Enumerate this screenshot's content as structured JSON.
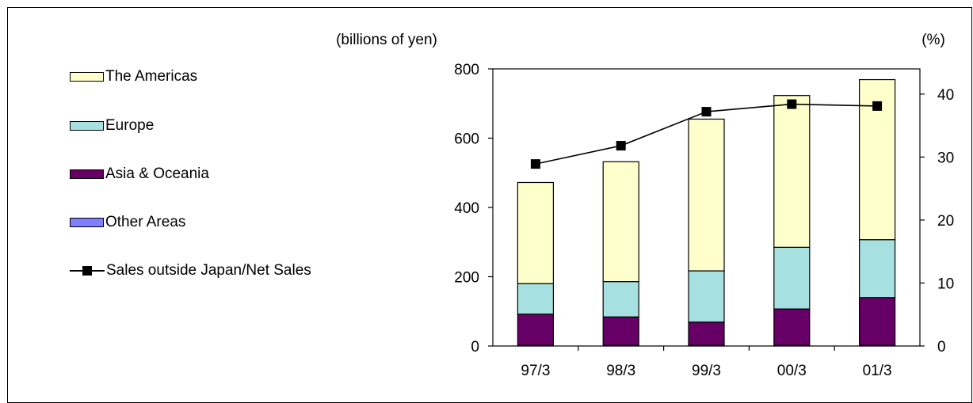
{
  "chart_data": {
    "type": "bar",
    "stacked": true,
    "categories": [
      "97/3",
      "98/3",
      "99/3",
      "00/3",
      "01/3"
    ],
    "series": [
      {
        "name": "Other Areas",
        "color": "#7f7fff",
        "values": [
          2,
          2,
          2,
          2,
          2
        ]
      },
      {
        "name": "Asia & Oceania",
        "color": "#660066",
        "values": [
          90,
          82,
          67,
          105,
          138
        ]
      },
      {
        "name": "Europe",
        "color": "#a6e0e0",
        "values": [
          88,
          102,
          148,
          178,
          167
        ]
      },
      {
        "name": "The Americas",
        "color": "#ffffcc",
        "values": [
          292,
          346,
          438,
          438,
          462
        ]
      }
    ],
    "line_series": {
      "name": "Sales outside Japan/Net Sales",
      "axis": "right",
      "color": "#000000",
      "values": [
        28.9,
        31.8,
        37.2,
        38.4,
        38.1
      ]
    },
    "y_left": {
      "label": "(billions of yen)",
      "ylim": [
        0,
        800
      ],
      "ticks": [
        0,
        200,
        400,
        600,
        800
      ]
    },
    "y_right": {
      "label": "(%)",
      "ylim": [
        0,
        44
      ],
      "ticks": [
        0,
        10,
        20,
        30,
        40
      ]
    },
    "xlabel": "",
    "grid": false,
    "legend_position": "left"
  }
}
